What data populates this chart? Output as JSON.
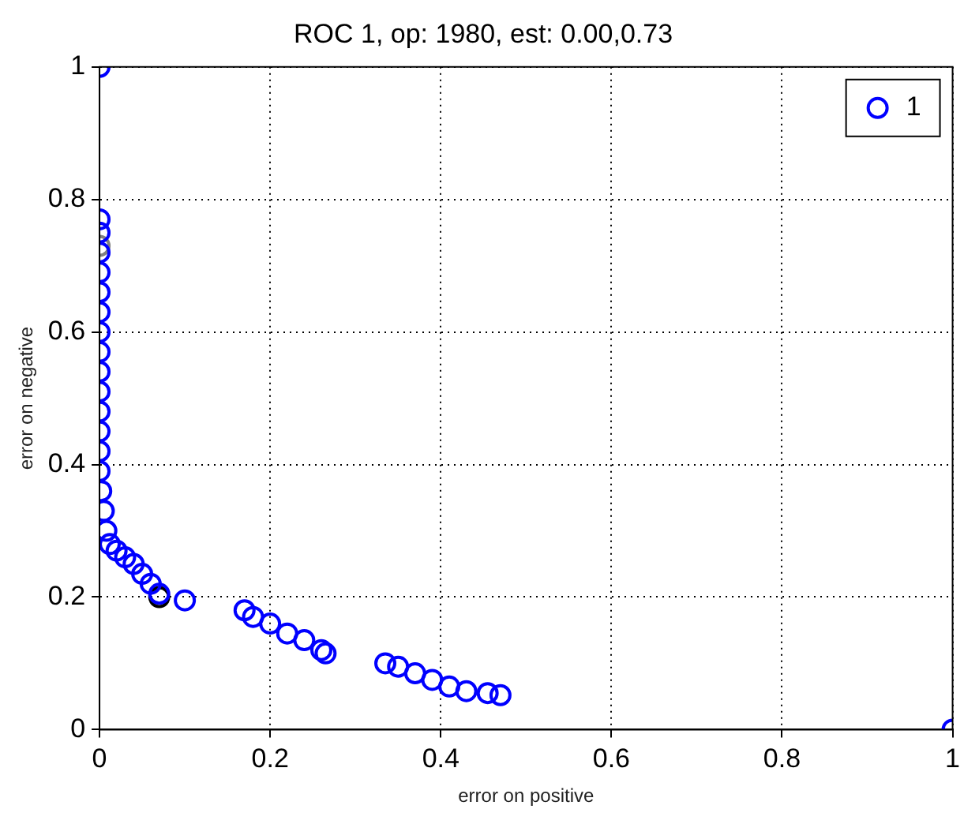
{
  "chart_data": {
    "type": "scatter",
    "title": "ROC 1, op: 1980, est: 0.00,0.73",
    "xlabel": "error on positive",
    "ylabel": "error on negative",
    "xlim": [
      0,
      1
    ],
    "ylim": [
      0,
      1
    ],
    "xticks": [
      0,
      0.2,
      0.4,
      0.6,
      0.8,
      1
    ],
    "yticks": [
      0,
      0.2,
      0.4,
      0.6,
      0.8,
      1
    ],
    "grid": true,
    "legend": "top right",
    "marker": "circle",
    "series": [
      {
        "name": "1",
        "color": "#0000ff",
        "x": [
          0,
          0,
          0,
          0,
          0,
          0,
          0,
          0,
          0,
          0,
          0,
          0,
          0,
          0,
          0,
          0.002,
          0.005,
          0.008,
          0.012,
          0.02,
          0.03,
          0.04,
          0.05,
          0.06,
          0.07,
          0.1,
          0.17,
          0.18,
          0.2,
          0.22,
          0.24,
          0.26,
          0.265,
          0.335,
          0.35,
          0.37,
          0.39,
          0.41,
          0.43,
          0.455,
          0.47,
          1
        ],
        "values": [
          1,
          0.77,
          0.75,
          0.72,
          0.69,
          0.66,
          0.63,
          0.6,
          0.57,
          0.54,
          0.51,
          0.48,
          0.45,
          0.42,
          0.39,
          0.36,
          0.33,
          0.3,
          0.28,
          0.27,
          0.26,
          0.25,
          0.235,
          0.22,
          0.205,
          0.195,
          0.18,
          0.17,
          0.16,
          0.145,
          0.135,
          0.12,
          0.115,
          0.1,
          0.095,
          0.085,
          0.075,
          0.065,
          0.058,
          0.055,
          0.052,
          0
        ]
      },
      {
        "color": "#808080",
        "x": [
          0
        ],
        "values": [
          0.73
        ]
      },
      {
        "color": "#000000",
        "x": [
          0.07
        ],
        "values": [
          0.2
        ]
      }
    ]
  }
}
